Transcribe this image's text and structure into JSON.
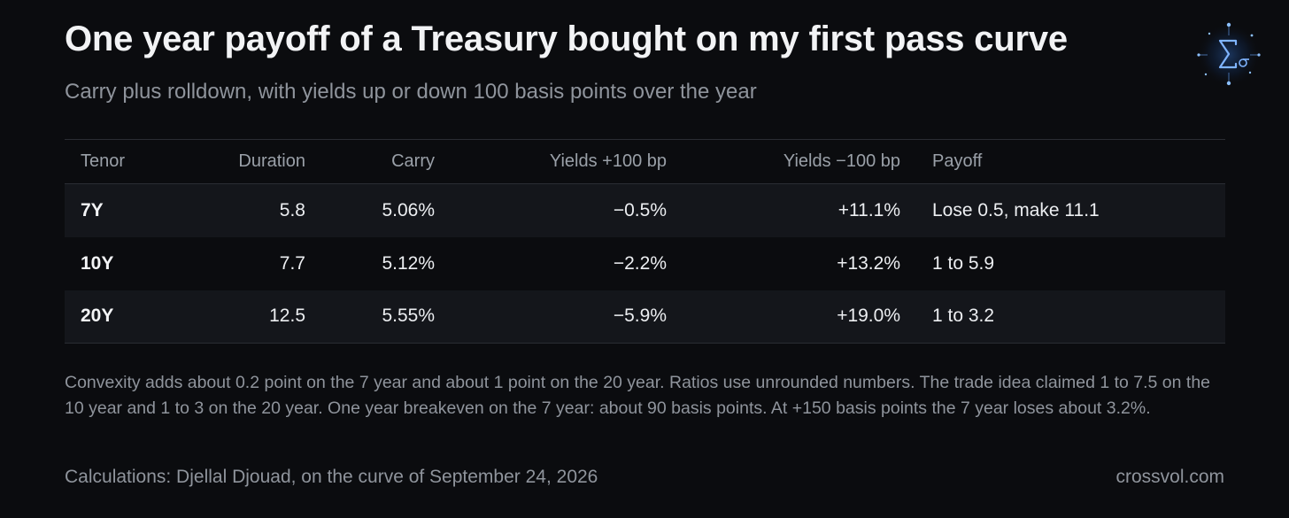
{
  "header": {
    "title": "One year payoff of a Treasury bought on my first pass curve",
    "subtitle": "Carry plus rolldown, with yields up or down 100 basis points over the year"
  },
  "logo": {
    "icon": "sigma-icon",
    "accent": "#6aa8ff"
  },
  "table": {
    "headers": [
      "Tenor",
      "Duration",
      "Carry",
      "Yields +100 bp",
      "Yields −100 bp",
      "Payoff"
    ],
    "rows": [
      {
        "tenor": "7Y",
        "duration": "5.8",
        "carry": "5.06%",
        "up": "−0.5%",
        "down": "+11.1%",
        "payoff": "Lose 0.5, make 11.1"
      },
      {
        "tenor": "10Y",
        "duration": "7.7",
        "carry": "5.12%",
        "up": "−2.2%",
        "down": "+13.2%",
        "payoff": "1 to 5.9"
      },
      {
        "tenor": "20Y",
        "duration": "12.5",
        "carry": "5.55%",
        "up": "−5.9%",
        "down": "+19.0%",
        "payoff": "1 to 3.2"
      }
    ]
  },
  "note": "Convexity adds about 0.2 point on the 7 year and about 1 point on the 20 year. Ratios use unrounded numbers. The trade idea claimed 1 to 7.5 on the 10 year and 1 to 3 on the 20 year. One year breakeven on the 7 year: about 90 basis points. At +150 basis points the 7 year loses about 3.2%.",
  "footer": {
    "credit": "Calculations: Djellal Djouad, on the curve of September 24, 2026",
    "site": "crossvol.com"
  },
  "colors": {
    "background": "#0b0c0f",
    "row_shade": "#14161b",
    "muted_text": "#8f949c"
  }
}
